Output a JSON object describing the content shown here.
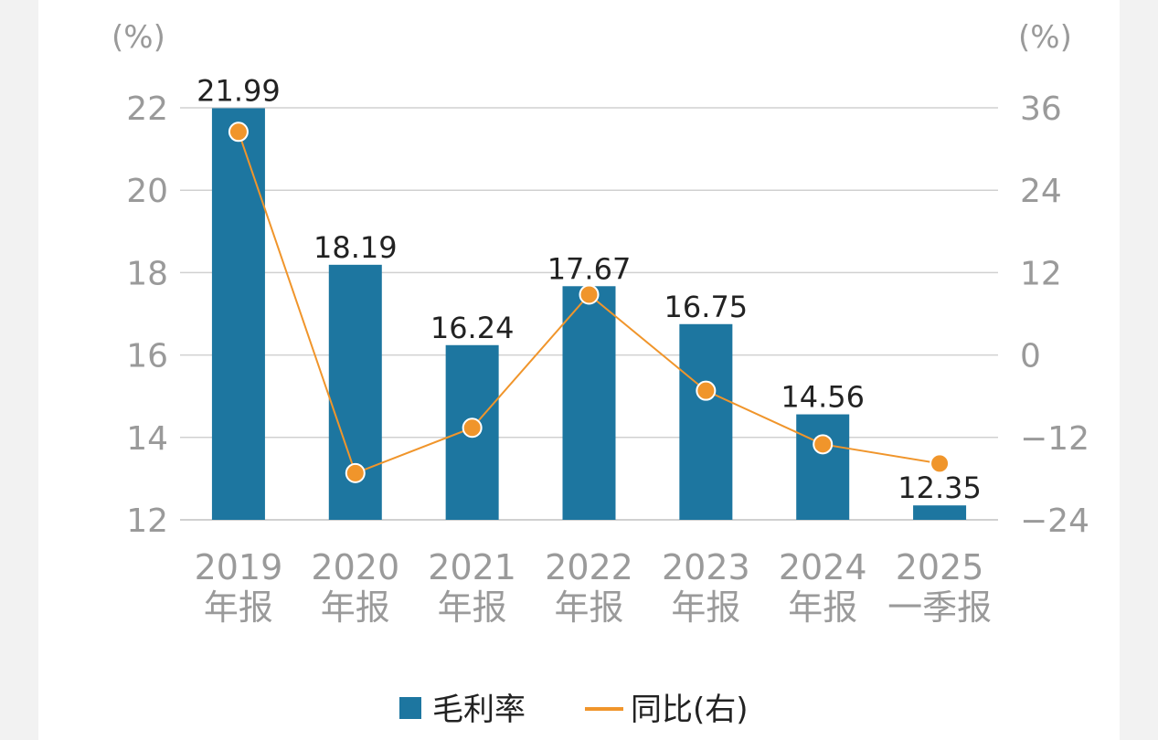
{
  "chart_data": {
    "type": "bar",
    "categories": [
      [
        "2019",
        "年报"
      ],
      [
        "2020",
        "年报"
      ],
      [
        "2021",
        "年报"
      ],
      [
        "2022",
        "年报"
      ],
      [
        "2023",
        "年报"
      ],
      [
        "2024",
        "年报"
      ],
      [
        "2025",
        "一季报"
      ]
    ],
    "series": [
      {
        "name": "毛利率",
        "type": "bar",
        "axis": "left",
        "color": "#1d76a0",
        "values": [
          21.99,
          18.19,
          16.24,
          17.67,
          16.75,
          14.56,
          12.35
        ],
        "labels": [
          "21.99",
          "18.19",
          "16.24",
          "17.67",
          "16.75",
          "14.56",
          "12.35"
        ]
      },
      {
        "name": "同比(右)",
        "type": "line",
        "axis": "right",
        "color": "#f0952b",
        "values": [
          32.5,
          -17.2,
          -10.6,
          8.8,
          -5.2,
          -13.0,
          -15.8
        ]
      }
    ],
    "left_axis": {
      "unit": "(%)",
      "range": [
        12,
        22
      ],
      "ticks": [
        12,
        14,
        16,
        18,
        20,
        22
      ],
      "tick_labels": [
        "12",
        "14",
        "16",
        "18",
        "20",
        "22"
      ]
    },
    "right_axis": {
      "unit": "(%)",
      "range": [
        -24,
        36
      ],
      "ticks": [
        -24,
        -12,
        0,
        12,
        24,
        36
      ],
      "tick_labels": [
        "−24",
        "−12",
        "0",
        "12",
        "24",
        "36"
      ]
    },
    "grid": true,
    "legend_position": "bottom"
  }
}
